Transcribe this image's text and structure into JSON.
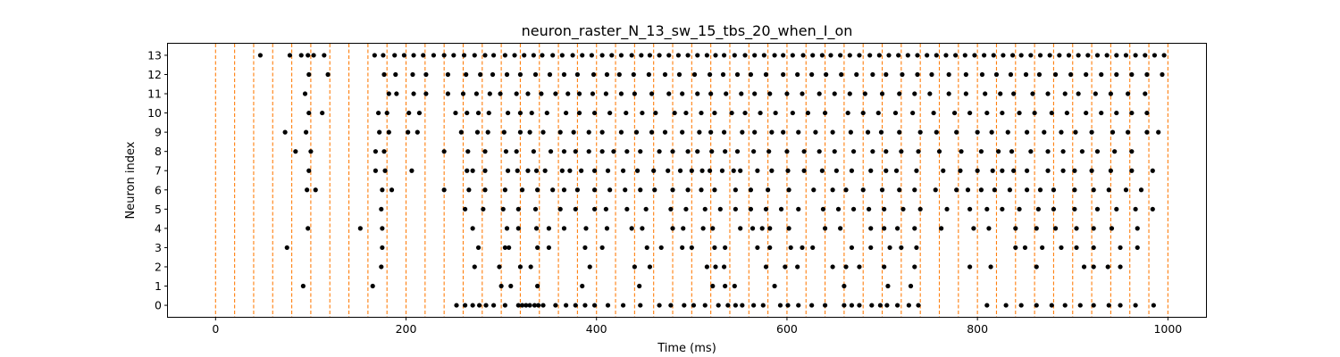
{
  "chart_data": {
    "type": "scatter",
    "title": "neuron_raster_N_13_sw_15_tbs_20_when_I_on",
    "xlabel": "Time (ms)",
    "ylabel": "Neuron index",
    "xlim": [
      -50,
      1040
    ],
    "ylim": [
      -0.6,
      13.6
    ],
    "x_ticks": [
      0,
      200,
      400,
      600,
      800,
      1000
    ],
    "y_ticks": [
      0,
      1,
      2,
      3,
      4,
      5,
      6,
      7,
      8,
      9,
      10,
      11,
      12,
      13
    ],
    "grid": false,
    "marker_color": "#000000",
    "vline_color": "#ff7f0e",
    "vlines": [
      0,
      20,
      40,
      60,
      80,
      100,
      120,
      140,
      160,
      180,
      200,
      220,
      240,
      260,
      280,
      300,
      320,
      340,
      360,
      380,
      400,
      420,
      440,
      460,
      480,
      500,
      520,
      540,
      560,
      580,
      600,
      620,
      640,
      660,
      680,
      700,
      720,
      740,
      760,
      780,
      800,
      820,
      840,
      860,
      880,
      900,
      920,
      940,
      960,
      980,
      1000
    ],
    "spikes": {
      "0": [
        253,
        262,
        270,
        277,
        284,
        292,
        304,
        318,
        322,
        326,
        330,
        335,
        339,
        344,
        357,
        368,
        378,
        388,
        398,
        412,
        428,
        446,
        466,
        478,
        492,
        502,
        514,
        528,
        538,
        546,
        553,
        565,
        575,
        593,
        601,
        612,
        626,
        640,
        660,
        668,
        676,
        689,
        698,
        705,
        716,
        728,
        738,
        810,
        830,
        846,
        862,
        878,
        892,
        908,
        922,
        938,
        950,
        966,
        985
      ],
      "1": [
        92,
        165,
        300,
        310,
        338,
        385,
        445,
        522,
        535,
        545,
        587,
        660,
        706,
        730
      ],
      "2": [
        174,
        272,
        298,
        320,
        331,
        393,
        440,
        456,
        516,
        525,
        534,
        578,
        598,
        611,
        648,
        662,
        676,
        702,
        734,
        792,
        814,
        862,
        912,
        922,
        937,
        950
      ],
      "3": [
        75,
        175,
        276,
        304,
        308,
        338,
        350,
        388,
        406,
        453,
        468,
        490,
        500,
        524,
        535,
        569,
        582,
        604,
        616,
        627,
        668,
        688,
        708,
        720,
        736,
        840,
        850,
        868,
        888,
        904,
        922,
        950,
        968
      ],
      "4": [
        97,
        152,
        175,
        270,
        306,
        318,
        337,
        350,
        366,
        389,
        411,
        437,
        448,
        480,
        491,
        512,
        522,
        551,
        564,
        574,
        582,
        602,
        640,
        656,
        688,
        702,
        716,
        734,
        762,
        796,
        812,
        840,
        862,
        882,
        904,
        922,
        941,
        968
      ],
      "5": [
        174,
        262,
        281,
        302,
        318,
        336,
        362,
        378,
        398,
        410,
        432,
        452,
        478,
        494,
        514,
        530,
        546,
        562,
        578,
        594,
        612,
        638,
        654,
        670,
        686,
        702,
        722,
        740,
        768,
        792,
        810,
        826,
        844,
        864,
        880,
        902,
        926,
        946,
        966,
        984
      ],
      "6": [
        96,
        105,
        175,
        185,
        240,
        266,
        283,
        304,
        322,
        338,
        354,
        366,
        380,
        398,
        414,
        430,
        446,
        461,
        480,
        496,
        510,
        524,
        546,
        562,
        580,
        602,
        628,
        648,
        662,
        680,
        700,
        718,
        734,
        756,
        778,
        790,
        804,
        818,
        834,
        852,
        866,
        880,
        902,
        922,
        938,
        956,
        972
      ],
      "7": [
        98,
        168,
        178,
        206,
        264,
        270,
        283,
        307,
        317,
        328,
        337,
        346,
        364,
        372,
        384,
        398,
        412,
        428,
        443,
        460,
        475,
        488,
        500,
        511,
        519,
        532,
        544,
        551,
        569,
        584,
        601,
        618,
        637,
        652,
        668,
        688,
        704,
        715,
        736,
        764,
        782,
        800,
        816,
        826,
        838,
        852,
        874,
        890,
        902,
        920,
        940,
        962,
        984
      ],
      "8": [
        84,
        100,
        168,
        177,
        240,
        265,
        283,
        305,
        316,
        334,
        352,
        366,
        378,
        392,
        406,
        418,
        432,
        446,
        466,
        480,
        496,
        506,
        521,
        535,
        548,
        565,
        581,
        600,
        618,
        634,
        650,
        670,
        690,
        704,
        720,
        738,
        760,
        783,
        804,
        822,
        836,
        856,
        874,
        890,
        910,
        926,
        944,
        962
      ],
      "9": [
        73,
        95,
        172,
        182,
        202,
        212,
        258,
        275,
        286,
        303,
        320,
        330,
        344,
        362,
        376,
        392,
        406,
        426,
        442,
        458,
        472,
        490,
        508,
        520,
        534,
        553,
        566,
        584,
        596,
        612,
        630,
        648,
        667,
        685,
        699,
        718,
        740,
        757,
        778,
        800,
        815,
        832,
        852,
        870,
        888,
        903,
        920,
        942,
        958,
        978,
        990
      ],
      "10": [
        98,
        112,
        171,
        180,
        203,
        214,
        252,
        264,
        276,
        287,
        307,
        320,
        332,
        348,
        368,
        382,
        398,
        414,
        431,
        448,
        462,
        482,
        494,
        510,
        524,
        542,
        556,
        572,
        588,
        606,
        622,
        640,
        664,
        680,
        696,
        714,
        732,
        754,
        776,
        792,
        810,
        826,
        844,
        860,
        878,
        894,
        914,
        930,
        946,
        962,
        978
      ],
      "11": [
        94,
        182,
        190,
        208,
        221,
        244,
        260,
        274,
        288,
        299,
        316,
        328,
        342,
        357,
        370,
        382,
        396,
        410,
        426,
        440,
        458,
        476,
        490,
        506,
        520,
        536,
        552,
        566,
        582,
        600,
        616,
        634,
        650,
        666,
        682,
        700,
        718,
        734,
        750,
        770,
        788,
        808,
        824,
        838,
        858,
        874,
        892,
        906,
        924,
        940,
        958,
        976
      ],
      "12": [
        98,
        118,
        177,
        189,
        207,
        221,
        244,
        263,
        278,
        291,
        306,
        320,
        336,
        351,
        366,
        380,
        397,
        411,
        424,
        439,
        455,
        472,
        487,
        503,
        519,
        533,
        548,
        562,
        578,
        596,
        611,
        626,
        641,
        657,
        673,
        690,
        704,
        721,
        737,
        752,
        770,
        788,
        805,
        820,
        835,
        851,
        865,
        882,
        898,
        914,
        930,
        946,
        962,
        978,
        994
      ],
      "13": [
        47,
        78,
        90,
        97,
        103,
        114,
        167,
        176,
        188,
        198,
        208,
        218,
        229,
        240,
        250,
        261,
        272,
        283,
        292,
        304,
        314,
        324,
        334,
        343,
        354,
        364,
        375,
        385,
        395,
        406,
        416,
        426,
        437,
        447,
        456,
        466,
        476,
        486,
        496,
        506,
        516,
        525,
        534,
        545,
        556,
        566,
        576,
        587,
        596,
        606,
        617,
        627,
        637,
        646,
        656,
        666,
        676,
        687,
        697,
        707,
        717,
        727,
        737,
        747,
        757,
        767,
        777,
        787,
        797,
        807,
        817,
        827,
        837,
        846,
        856,
        866,
        876,
        886,
        896,
        906,
        916,
        926,
        936,
        946,
        956,
        966,
        976,
        986,
        996
      ]
    }
  }
}
